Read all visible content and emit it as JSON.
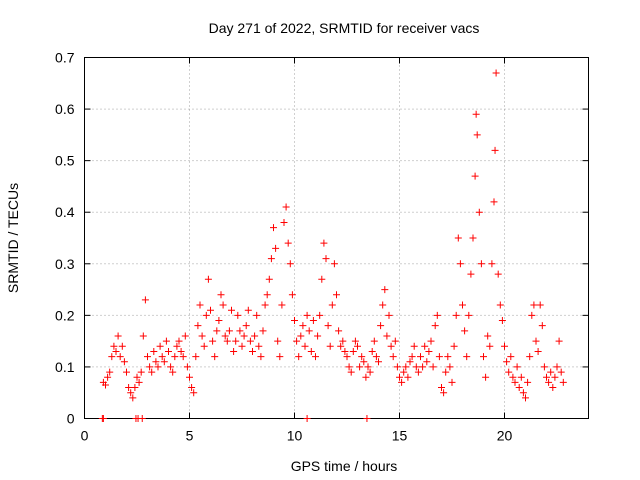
{
  "chart_data": {
    "type": "scatter",
    "title": "Day 271 of 2022, SRMTID for receiver vacs",
    "xlabel": "GPS time / hours",
    "ylabel": "SRMTID / TECUs",
    "xlim": [
      0,
      24
    ],
    "ylim": [
      0,
      0.7
    ],
    "xticks": [
      0,
      5,
      10,
      15,
      20
    ],
    "yticks": [
      0,
      0.1,
      0.2,
      0.3,
      0.4,
      0.5,
      0.6,
      0.7
    ],
    "xtick_labels": [
      "0",
      "5",
      "10",
      "15",
      "20"
    ],
    "ytick_labels": [
      "0",
      "0.1",
      "0.2",
      "0.3",
      "0.4",
      "0.5",
      "0.6",
      "0.7"
    ],
    "grid": true,
    "marker": "+",
    "color": "#ff0000",
    "series": [
      {
        "name": "SRMTID",
        "points": [
          [
            0.85,
            0.0
          ],
          [
            0.9,
            0.0
          ],
          [
            2.45,
            0.0
          ],
          [
            2.55,
            0.0
          ],
          [
            2.75,
            0.0
          ],
          [
            10.6,
            0.0
          ],
          [
            13.45,
            0.0
          ],
          [
            0.9,
            0.07
          ],
          [
            1.0,
            0.065
          ],
          [
            1.1,
            0.08
          ],
          [
            1.2,
            0.09
          ],
          [
            1.3,
            0.12
          ],
          [
            1.4,
            0.14
          ],
          [
            1.5,
            0.13
          ],
          [
            1.6,
            0.16
          ],
          [
            1.7,
            0.12
          ],
          [
            1.8,
            0.14
          ],
          [
            1.9,
            0.11
          ],
          [
            2.0,
            0.09
          ],
          [
            2.1,
            0.06
          ],
          [
            2.2,
            0.05
          ],
          [
            2.3,
            0.04
          ],
          [
            2.4,
            0.06
          ],
          [
            2.5,
            0.08
          ],
          [
            2.6,
            0.07
          ],
          [
            2.7,
            0.09
          ],
          [
            2.8,
            0.16
          ],
          [
            2.9,
            0.23
          ],
          [
            3.0,
            0.12
          ],
          [
            3.1,
            0.1
          ],
          [
            3.2,
            0.09
          ],
          [
            3.3,
            0.13
          ],
          [
            3.4,
            0.11
          ],
          [
            3.5,
            0.1
          ],
          [
            3.6,
            0.14
          ],
          [
            3.7,
            0.12
          ],
          [
            3.8,
            0.11
          ],
          [
            3.9,
            0.15
          ],
          [
            4.0,
            0.13
          ],
          [
            4.1,
            0.1
          ],
          [
            4.2,
            0.09
          ],
          [
            4.3,
            0.12
          ],
          [
            4.4,
            0.14
          ],
          [
            4.5,
            0.15
          ],
          [
            4.6,
            0.13
          ],
          [
            4.7,
            0.12
          ],
          [
            4.8,
            0.16
          ],
          [
            4.9,
            0.1
          ],
          [
            5.0,
            0.08
          ],
          [
            5.1,
            0.06
          ],
          [
            5.2,
            0.05
          ],
          [
            5.3,
            0.12
          ],
          [
            5.4,
            0.18
          ],
          [
            5.5,
            0.22
          ],
          [
            5.6,
            0.16
          ],
          [
            5.7,
            0.14
          ],
          [
            5.8,
            0.2
          ],
          [
            5.9,
            0.27
          ],
          [
            6.0,
            0.21
          ],
          [
            6.1,
            0.15
          ],
          [
            6.2,
            0.12
          ],
          [
            6.3,
            0.17
          ],
          [
            6.4,
            0.19
          ],
          [
            6.5,
            0.24
          ],
          [
            6.6,
            0.22
          ],
          [
            6.7,
            0.16
          ],
          [
            6.8,
            0.15
          ],
          [
            6.9,
            0.17
          ],
          [
            7.0,
            0.21
          ],
          [
            7.1,
            0.13
          ],
          [
            7.2,
            0.15
          ],
          [
            7.3,
            0.2
          ],
          [
            7.4,
            0.17
          ],
          [
            7.5,
            0.14
          ],
          [
            7.6,
            0.16
          ],
          [
            7.7,
            0.18
          ],
          [
            7.8,
            0.21
          ],
          [
            7.9,
            0.15
          ],
          [
            8.0,
            0.13
          ],
          [
            8.1,
            0.16
          ],
          [
            8.2,
            0.2
          ],
          [
            8.3,
            0.14
          ],
          [
            8.4,
            0.12
          ],
          [
            8.5,
            0.17
          ],
          [
            8.6,
            0.22
          ],
          [
            8.7,
            0.24
          ],
          [
            8.8,
            0.27
          ],
          [
            8.9,
            0.31
          ],
          [
            9.0,
            0.37
          ],
          [
            9.1,
            0.33
          ],
          [
            9.2,
            0.15
          ],
          [
            9.3,
            0.12
          ],
          [
            9.4,
            0.22
          ],
          [
            9.5,
            0.38
          ],
          [
            9.6,
            0.41
          ],
          [
            9.7,
            0.34
          ],
          [
            9.8,
            0.3
          ],
          [
            9.9,
            0.24
          ],
          [
            10.0,
            0.19
          ],
          [
            10.1,
            0.15
          ],
          [
            10.2,
            0.12
          ],
          [
            10.3,
            0.16
          ],
          [
            10.4,
            0.18
          ],
          [
            10.5,
            0.14
          ],
          [
            10.6,
            0.2
          ],
          [
            10.7,
            0.17
          ],
          [
            10.8,
            0.13
          ],
          [
            10.9,
            0.19
          ],
          [
            11.0,
            0.12
          ],
          [
            11.1,
            0.16
          ],
          [
            11.2,
            0.2
          ],
          [
            11.3,
            0.27
          ],
          [
            11.4,
            0.34
          ],
          [
            11.5,
            0.31
          ],
          [
            11.6,
            0.18
          ],
          [
            11.7,
            0.14
          ],
          [
            11.8,
            0.22
          ],
          [
            11.9,
            0.3
          ],
          [
            12.0,
            0.24
          ],
          [
            12.1,
            0.17
          ],
          [
            12.2,
            0.14
          ],
          [
            12.3,
            0.15
          ],
          [
            12.4,
            0.13
          ],
          [
            12.5,
            0.12
          ],
          [
            12.6,
            0.1
          ],
          [
            12.7,
            0.09
          ],
          [
            12.8,
            0.13
          ],
          [
            12.9,
            0.15
          ],
          [
            13.0,
            0.14
          ],
          [
            13.1,
            0.1
          ],
          [
            13.2,
            0.12
          ],
          [
            13.3,
            0.11
          ],
          [
            13.4,
            0.08
          ],
          [
            13.5,
            0.1
          ],
          [
            13.6,
            0.09
          ],
          [
            13.7,
            0.13
          ],
          [
            13.8,
            0.15
          ],
          [
            13.9,
            0.12
          ],
          [
            14.0,
            0.11
          ],
          [
            14.1,
            0.18
          ],
          [
            14.2,
            0.22
          ],
          [
            14.3,
            0.25
          ],
          [
            14.4,
            0.16
          ],
          [
            14.5,
            0.2
          ],
          [
            14.6,
            0.14
          ],
          [
            14.7,
            0.12
          ],
          [
            14.8,
            0.15
          ],
          [
            14.9,
            0.1
          ],
          [
            15.0,
            0.08
          ],
          [
            15.1,
            0.07
          ],
          [
            15.2,
            0.09
          ],
          [
            15.3,
            0.1
          ],
          [
            15.4,
            0.08
          ],
          [
            15.5,
            0.11
          ],
          [
            15.6,
            0.12
          ],
          [
            15.7,
            0.14
          ],
          [
            15.8,
            0.1
          ],
          [
            15.9,
            0.09
          ],
          [
            16.0,
            0.12
          ],
          [
            16.1,
            0.1
          ],
          [
            16.2,
            0.14
          ],
          [
            16.3,
            0.11
          ],
          [
            16.4,
            0.13
          ],
          [
            16.5,
            0.15
          ],
          [
            16.6,
            0.1
          ],
          [
            16.7,
            0.18
          ],
          [
            16.8,
            0.2
          ],
          [
            16.9,
            0.12
          ],
          [
            17.0,
            0.06
          ],
          [
            17.1,
            0.05
          ],
          [
            17.2,
            0.09
          ],
          [
            17.3,
            0.12
          ],
          [
            17.4,
            0.1
          ],
          [
            17.5,
            0.07
          ],
          [
            17.6,
            0.14
          ],
          [
            17.7,
            0.2
          ],
          [
            17.8,
            0.35
          ],
          [
            17.9,
            0.3
          ],
          [
            18.0,
            0.22
          ],
          [
            18.1,
            0.17
          ],
          [
            18.2,
            0.12
          ],
          [
            18.3,
            0.2
          ],
          [
            18.4,
            0.28
          ],
          [
            18.5,
            0.35
          ],
          [
            18.6,
            0.47
          ],
          [
            18.65,
            0.59
          ],
          [
            18.7,
            0.55
          ],
          [
            18.8,
            0.4
          ],
          [
            18.9,
            0.3
          ],
          [
            19.0,
            0.12
          ],
          [
            19.1,
            0.08
          ],
          [
            19.2,
            0.16
          ],
          [
            19.3,
            0.14
          ],
          [
            19.4,
            0.3
          ],
          [
            19.5,
            0.42
          ],
          [
            19.55,
            0.52
          ],
          [
            19.6,
            0.67
          ],
          [
            19.7,
            0.28
          ],
          [
            19.8,
            0.22
          ],
          [
            19.9,
            0.19
          ],
          [
            20.0,
            0.14
          ],
          [
            20.1,
            0.11
          ],
          [
            20.2,
            0.09
          ],
          [
            20.3,
            0.12
          ],
          [
            20.4,
            0.08
          ],
          [
            20.5,
            0.07
          ],
          [
            20.6,
            0.1
          ],
          [
            20.7,
            0.06
          ],
          [
            20.8,
            0.08
          ],
          [
            20.9,
            0.05
          ],
          [
            21.0,
            0.04
          ],
          [
            21.1,
            0.07
          ],
          [
            21.2,
            0.12
          ],
          [
            21.3,
            0.2
          ],
          [
            21.4,
            0.22
          ],
          [
            21.5,
            0.15
          ],
          [
            21.6,
            0.13
          ],
          [
            21.7,
            0.22
          ],
          [
            21.8,
            0.18
          ],
          [
            21.9,
            0.1
          ],
          [
            22.0,
            0.08
          ],
          [
            22.1,
            0.07
          ],
          [
            22.2,
            0.09
          ],
          [
            22.3,
            0.06
          ],
          [
            22.4,
            0.08
          ],
          [
            22.5,
            0.1
          ],
          [
            22.6,
            0.15
          ],
          [
            22.7,
            0.09
          ],
          [
            22.8,
            0.07
          ]
        ]
      }
    ]
  }
}
